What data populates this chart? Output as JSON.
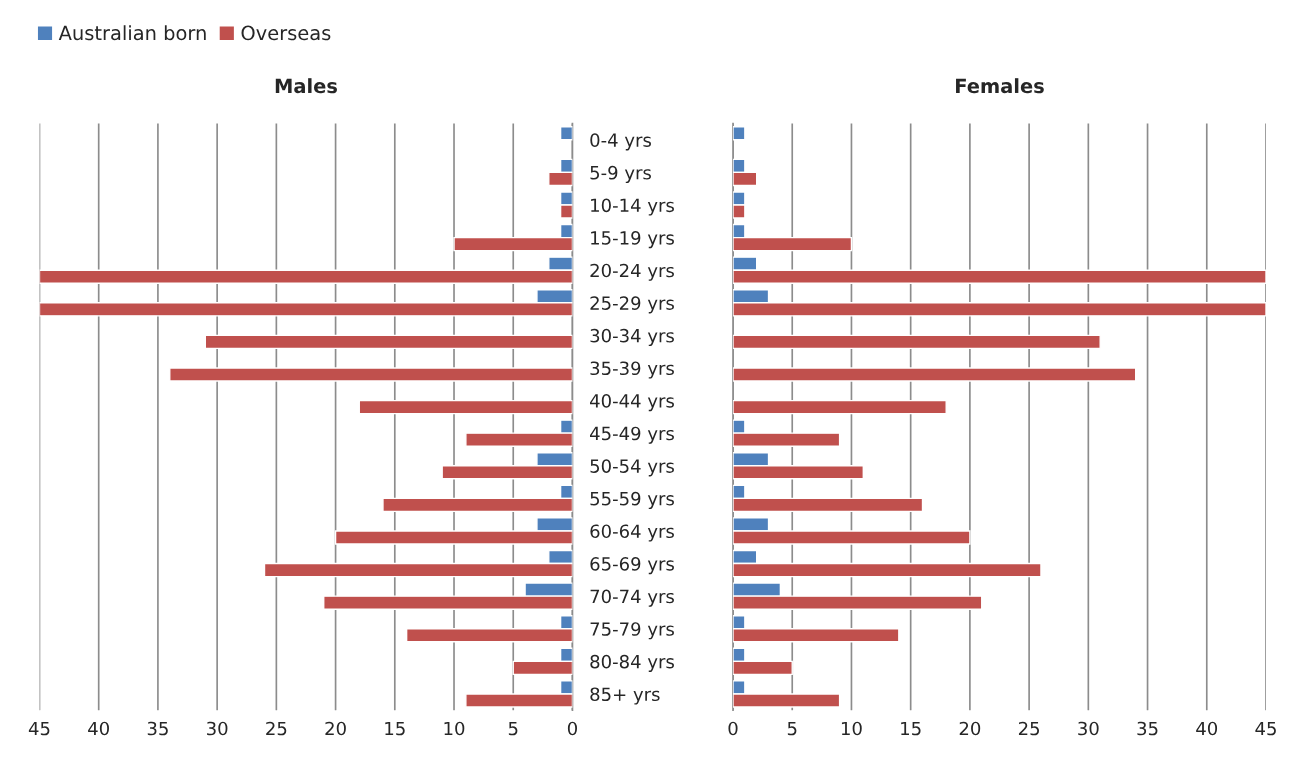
{
  "chart_data": [
    {
      "type": "bar",
      "orientation": "horizontal",
      "title": "Males",
      "categories": [
        "0-4 yrs",
        "5-9 yrs",
        "10-14 yrs",
        "15-19 yrs",
        "20-24 yrs",
        "25-29 yrs",
        "30-34 yrs",
        "35-39 yrs",
        "40-44 yrs",
        "45-49 yrs",
        "50-54 yrs",
        "55-59 yrs",
        "60-64 yrs",
        "65-69 yrs",
        "70-74 yrs",
        "75-79 yrs",
        "80-84 yrs",
        "85+ yrs"
      ],
      "series": [
        {
          "name": "Australian born",
          "color": "#4f81bd",
          "values": [
            1,
            1,
            1,
            1,
            2,
            3,
            null,
            null,
            null,
            1,
            3,
            1,
            3,
            2,
            4,
            1,
            1,
            1
          ]
        },
        {
          "name": "Overseas",
          "color": "#c0504d",
          "values": [
            null,
            2,
            1,
            10,
            45,
            45,
            31,
            34,
            18,
            9,
            11,
            16,
            20,
            26,
            21,
            14,
            5,
            9
          ]
        }
      ],
      "xlim": [
        45,
        0
      ],
      "xticks": [
        45,
        40,
        35,
        30,
        25,
        20,
        15,
        10,
        5,
        0
      ],
      "grid": "x",
      "legend": "top left"
    },
    {
      "type": "bar",
      "orientation": "horizontal",
      "title": "Females",
      "series": [
        {
          "color": "#4f81bd",
          "values": [
            1,
            1,
            1,
            1,
            2,
            3,
            null,
            null,
            null,
            1,
            3,
            1,
            3,
            2,
            4,
            1,
            1,
            1
          ]
        },
        {
          "color": "#c0504d",
          "values": [
            null,
            2,
            1,
            10,
            45,
            45,
            31,
            34,
            18,
            9,
            11,
            16,
            20,
            26,
            21,
            14,
            5,
            9
          ]
        }
      ],
      "xlim": [
        0,
        45
      ],
      "xticks": [
        0,
        5,
        10,
        15,
        20,
        25,
        30,
        35,
        40,
        45
      ],
      "grid": "x",
      "tick_labels": "x"
    }
  ]
}
